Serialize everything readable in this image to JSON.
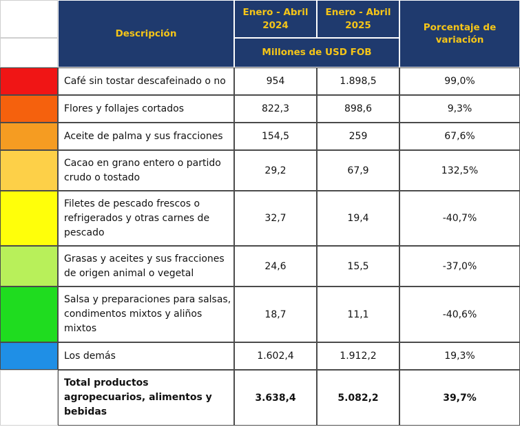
{
  "header": {
    "descripcion": "Descripción",
    "period_2024": "Enero - Abril\n2024",
    "period_2025": "Enero - Abril\n2025",
    "units": "Millones de USD FOB",
    "variation": "Porcentaje de\nvariación"
  },
  "colors": {
    "header_bg": "#1f3a6e",
    "header_text": "#f5c518"
  },
  "rows": [
    {
      "swatch": "#f01515",
      "desc": "Café sin tostar descafeinado o no",
      "v2024": "954",
      "v2025": "1.898,5",
      "var": "99,0%"
    },
    {
      "swatch": "#f5610d",
      "desc": "Flores y follajes cortados",
      "v2024": "822,3",
      "v2025": "898,6",
      "var": "9,3%"
    },
    {
      "swatch": "#f59c22",
      "desc": "Aceite de palma y sus fracciones",
      "v2024": "154,5",
      "v2025": "259",
      "var": "67,6%"
    },
    {
      "swatch": "#fdd048",
      "desc": "Cacao en grano entero o partido\ncrudo o tostado",
      "v2024": "29,2",
      "v2025": "67,9",
      "var": "132,5%"
    },
    {
      "swatch": "#ffff0a",
      "desc": "Filetes de pescado frescos o\nrefrigerados y otras carnes de\npescado",
      "v2024": "32,7",
      "v2025": "19,4",
      "var": "-40,7%"
    },
    {
      "swatch": "#b8f05a",
      "desc": "Grasas y aceites y sus fracciones\nde origen animal o vegetal",
      "v2024": "24,6",
      "v2025": "15,5",
      "var": "-37,0%"
    },
    {
      "swatch": "#1fdc1f",
      "desc": "Salsa y preparaciones para salsas,\ncondimentos mixtos y aliños\nmixtos",
      "v2024": "18,7",
      "v2025": "11,1",
      "var": "-40,6%"
    },
    {
      "swatch": "#1f8fe6",
      "desc": "Los demás",
      "v2024": "1.602,4",
      "v2025": "1.912,2",
      "var": "19,3%"
    }
  ],
  "total": {
    "desc": "Total productos\nagropecuarios, alimentos y\nbebidas",
    "v2024": "3.638,4",
    "v2025": "5.082,2",
    "var": "39,7%"
  }
}
